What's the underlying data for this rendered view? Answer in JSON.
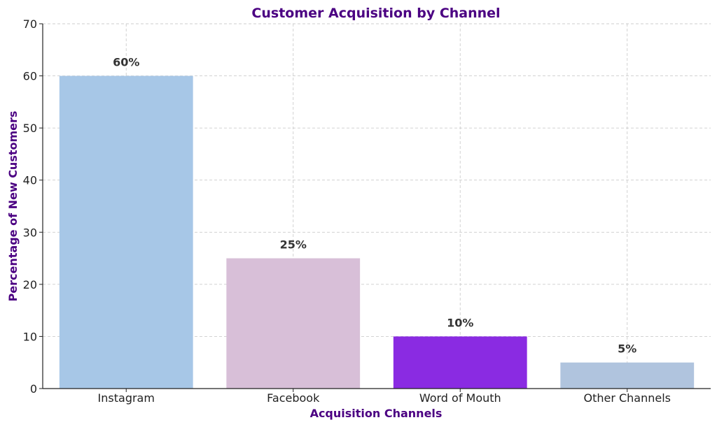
{
  "chart_data": {
    "type": "bar",
    "title": "Customer Acquisition by Channel",
    "xlabel": "Acquisition Channels",
    "ylabel": "Percentage of New Customers",
    "categories": [
      "Instagram",
      "Facebook",
      "Word of Mouth",
      "Other Channels"
    ],
    "values": [
      60,
      25,
      10,
      5
    ],
    "data_labels": [
      "60%",
      "25%",
      "10%",
      "5%"
    ],
    "bar_colors": [
      "#a7c7e7",
      "#d8bfd8",
      "#8a2be2",
      "#b0c4de"
    ],
    "ylim": [
      0,
      70
    ],
    "yticks": [
      0,
      10,
      20,
      30,
      40,
      50,
      60,
      70
    ],
    "grid": true,
    "legend": "none",
    "title_color": "#4b0082",
    "label_color": "#4b0082"
  }
}
